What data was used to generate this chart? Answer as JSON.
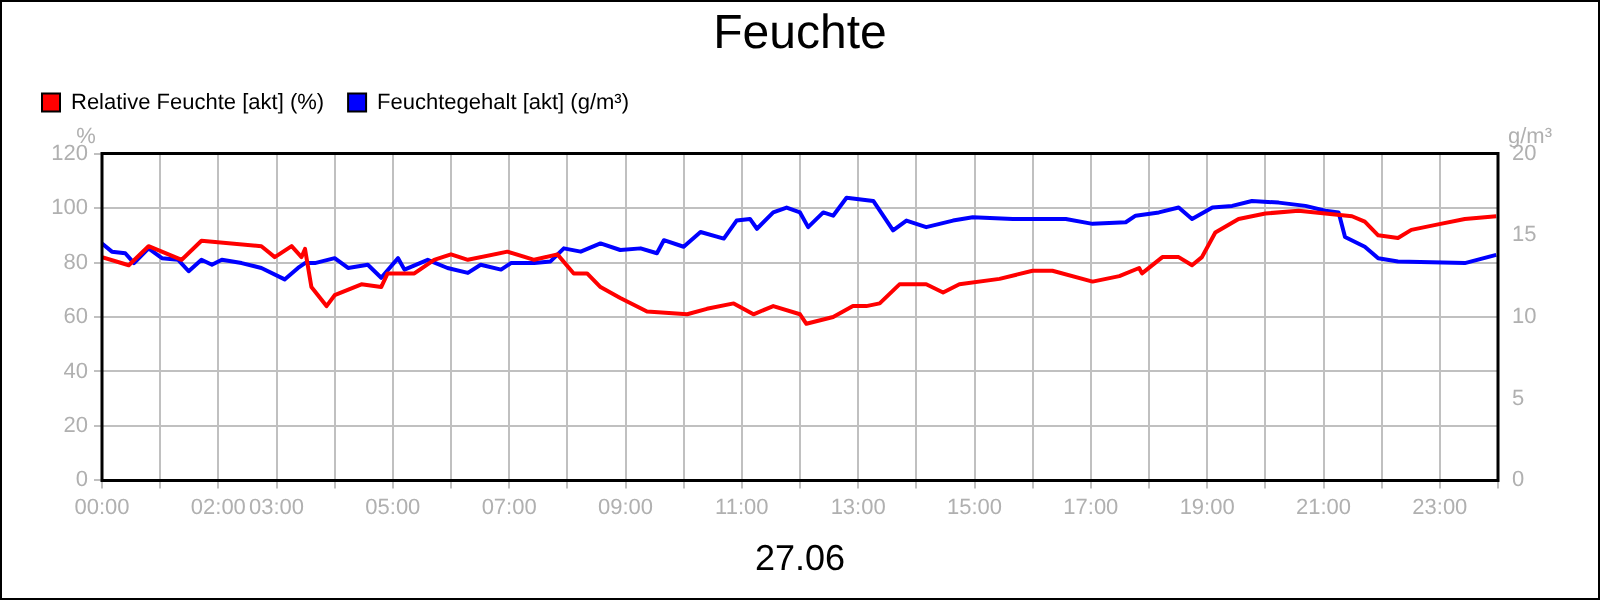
{
  "chart_data": {
    "type": "line",
    "title": "Feuchte",
    "xlabel": "27.06",
    "ylabel": "%",
    "y2label": "g/m³",
    "xlim": [
      0,
      24
    ],
    "xticks": [
      {
        "value": 0,
        "label": "00:00"
      },
      {
        "value": 1,
        "label": null
      },
      {
        "value": 2,
        "label": "02:00"
      },
      {
        "value": 3,
        "label": "03:00"
      },
      {
        "value": 4,
        "label": null
      },
      {
        "value": 5,
        "label": "05:00"
      },
      {
        "value": 6,
        "label": null
      },
      {
        "value": 7,
        "label": "07:00"
      },
      {
        "value": 8,
        "label": null
      },
      {
        "value": 9,
        "label": "09:00"
      },
      {
        "value": 10,
        "label": null
      },
      {
        "value": 11,
        "label": "11:00"
      },
      {
        "value": 12,
        "label": null
      },
      {
        "value": 13,
        "label": "13:00"
      },
      {
        "value": 14,
        "label": null
      },
      {
        "value": 15,
        "label": "15:00"
      },
      {
        "value": 16,
        "label": null
      },
      {
        "value": 17,
        "label": "17:00"
      },
      {
        "value": 18,
        "label": null
      },
      {
        "value": 19,
        "label": "19:00"
      },
      {
        "value": 20,
        "label": null
      },
      {
        "value": 21,
        "label": "21:00"
      },
      {
        "value": 22,
        "label": null
      },
      {
        "value": 23,
        "label": "23:00"
      },
      {
        "value": 24,
        "label": null
      }
    ],
    "ylim": [
      0,
      120
    ],
    "yticks": [
      0,
      20,
      40,
      60,
      80,
      100,
      120
    ],
    "y2lim": [
      0,
      20
    ],
    "y2ticks": [
      0,
      5,
      10,
      15,
      20
    ],
    "grid": true,
    "legend": "top left",
    "marker": "none",
    "line_style": "solid",
    "series": [
      {
        "name": "Relative Feuchte [akt] (%)",
        "color": "#ff0000",
        "x": [
          0,
          0.46,
          0.8,
          1.37,
          1.71,
          2.74,
          2.97,
          3.26,
          3.43,
          3.49,
          3.6,
          3.86,
          4.0,
          4.46,
          4.8,
          4.91,
          5.37,
          5.71,
          6.0,
          6.29,
          6.97,
          7.43,
          7.83,
          8.11,
          8.34,
          8.57,
          8.91,
          9.37,
          10.06,
          10.4,
          10.86,
          11.2,
          11.54,
          12.0,
          12.11,
          12.57,
          12.91,
          13.14,
          13.37,
          13.71,
          14.17,
          14.46,
          14.74,
          15.43,
          16.0,
          16.34,
          17.03,
          17.49,
          17.83,
          17.88,
          18.23,
          18.51,
          18.74,
          18.91,
          19.14,
          19.54,
          20.0,
          20.57,
          21.03,
          21.49,
          21.71,
          21.94,
          22.28,
          22.51,
          22.97,
          23.43,
          23.97
        ],
        "values": [
          82,
          79,
          86,
          81,
          88,
          86,
          82,
          86,
          82,
          85,
          71,
          64,
          68,
          72,
          71,
          76,
          76,
          81,
          83,
          81,
          84,
          81,
          83,
          76,
          76,
          71,
          67,
          62,
          61,
          63,
          65,
          61,
          64,
          61,
          57.5,
          60,
          64,
          64,
          65,
          72,
          72,
          69,
          72,
          74,
          77,
          77,
          73,
          75,
          78,
          76,
          82,
          82,
          79,
          82,
          91,
          96,
          98,
          99,
          98,
          97,
          95,
          90,
          89,
          92,
          94,
          96,
          97
        ]
      },
      {
        "name": "Feuchtegehalt [akt] (g/m³)",
        "color": "#0000ff",
        "axis": "y2",
        "x": [
          0,
          0.17,
          0.4,
          0.55,
          0.8,
          1.03,
          1.31,
          1.49,
          1.71,
          1.89,
          2.06,
          2.4,
          2.74,
          3.14,
          3.37,
          3.49,
          3.66,
          4.0,
          4.23,
          4.57,
          4.8,
          5.09,
          5.2,
          5.6,
          5.94,
          6.29,
          6.51,
          6.86,
          7.03,
          7.43,
          7.71,
          7.94,
          8.23,
          8.57,
          8.91,
          9.26,
          9.54,
          9.66,
          10.0,
          10.29,
          10.69,
          10.91,
          11.14,
          11.26,
          11.54,
          11.77,
          12.0,
          12.14,
          12.4,
          12.57,
          12.8,
          13.26,
          13.6,
          13.83,
          14.17,
          14.63,
          14.97,
          15.66,
          16.57,
          17.03,
          17.6,
          17.77,
          18.17,
          18.51,
          18.74,
          19.09,
          19.43,
          19.77,
          20.23,
          20.69,
          21.03,
          21.26,
          21.37,
          21.71,
          21.94,
          22.28,
          23.43,
          23.97
        ],
        "values": [
          14.5,
          14.0,
          13.9,
          13.3,
          14.2,
          13.6,
          13.5,
          12.8,
          13.5,
          13.2,
          13.5,
          13.3,
          13.0,
          12.3,
          13.0,
          13.3,
          13.3,
          13.6,
          13.0,
          13.2,
          12.4,
          13.6,
          12.9,
          13.5,
          13.0,
          12.7,
          13.2,
          12.9,
          13.3,
          13.3,
          13.4,
          14.2,
          14.0,
          14.5,
          14.1,
          14.2,
          13.9,
          14.7,
          14.3,
          15.2,
          14.8,
          15.9,
          16.0,
          15.4,
          16.4,
          16.7,
          16.4,
          15.5,
          16.4,
          16.2,
          17.3,
          17.1,
          15.3,
          15.9,
          15.5,
          15.9,
          16.1,
          16.0,
          16.0,
          15.7,
          15.8,
          16.2,
          16.4,
          16.7,
          16.0,
          16.7,
          16.8,
          17.1,
          17.0,
          16.8,
          16.5,
          16.4,
          14.9,
          14.3,
          13.6,
          13.4,
          13.3,
          13.8
        ]
      }
    ]
  }
}
